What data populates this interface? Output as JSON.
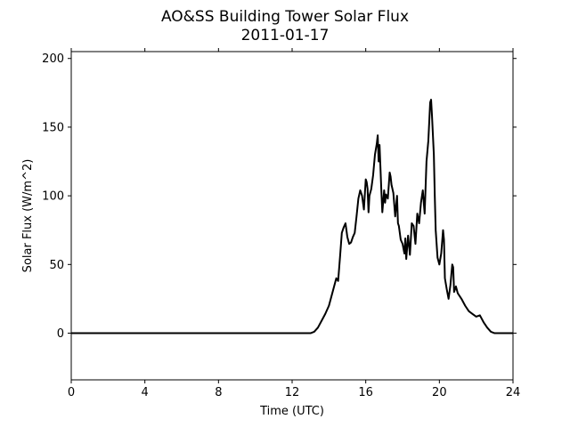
{
  "chart_data": {
    "type": "line",
    "title": "AO&SS Building Tower Solar Flux",
    "subtitle": "2011-01-17",
    "xlabel": "Time (UTC)",
    "ylabel": "Solar Flux (W/m^2)",
    "xlim": [
      0,
      24
    ],
    "ylim": [
      -34,
      205
    ],
    "xticks": [
      0,
      4,
      8,
      12,
      16,
      20,
      24
    ],
    "yticks": [
      0,
      50,
      100,
      150,
      200
    ],
    "grid": false,
    "line_color": "#000000",
    "series": [
      {
        "x": [
          0,
          13.0,
          13.2,
          13.4,
          13.6,
          13.8,
          14.0,
          14.2,
          14.4,
          14.5,
          14.6,
          14.7,
          14.8,
          14.9,
          15.0,
          15.1,
          15.2,
          15.3,
          15.4,
          15.5,
          15.6,
          15.7,
          15.8,
          15.9,
          16.0,
          16.05,
          16.1,
          16.15,
          16.2,
          16.3,
          16.4,
          16.5,
          16.6,
          16.65,
          16.7,
          16.75,
          16.8,
          16.85,
          16.9,
          17.0,
          17.05,
          17.1,
          17.2,
          17.3,
          17.35,
          17.4,
          17.5,
          17.6,
          17.7,
          17.75,
          17.8,
          17.9,
          18.0,
          18.1,
          18.15,
          18.2,
          18.3,
          18.4,
          18.5,
          18.6,
          18.7,
          18.8,
          18.9,
          19.0,
          19.1,
          19.2,
          19.3,
          19.4,
          19.5,
          19.55,
          19.6,
          19.7,
          19.75,
          19.8,
          19.9,
          20.0,
          20.1,
          20.2,
          20.25,
          20.3,
          20.4,
          20.5,
          20.6,
          20.7,
          20.75,
          20.8,
          20.9,
          21.0,
          21.2,
          21.4,
          21.6,
          21.8,
          22.0,
          22.2,
          22.4,
          22.6,
          22.8,
          23.0,
          23.2,
          24.0
        ],
        "y": [
          0,
          0,
          1,
          4,
          9,
          14,
          20,
          30,
          40,
          38,
          55,
          73,
          77,
          80,
          70,
          65,
          66,
          70,
          73,
          85,
          98,
          104,
          100,
          90,
          112,
          110,
          105,
          88,
          100,
          105,
          115,
          130,
          138,
          144,
          125,
          137,
          120,
          103,
          88,
          104,
          95,
          101,
          98,
          117,
          114,
          108,
          102,
          85,
          100,
          80,
          78,
          68,
          65,
          58,
          69,
          54,
          71,
          57,
          80,
          78,
          65,
          87,
          80,
          95,
          104,
          87,
          125,
          140,
          168,
          170,
          158,
          130,
          100,
          75,
          55,
          50,
          58,
          75,
          68,
          40,
          32,
          25,
          35,
          50,
          48,
          30,
          34,
          29,
          25,
          20,
          16,
          14,
          12,
          13,
          8,
          4,
          1,
          0,
          0,
          0
        ]
      }
    ]
  }
}
